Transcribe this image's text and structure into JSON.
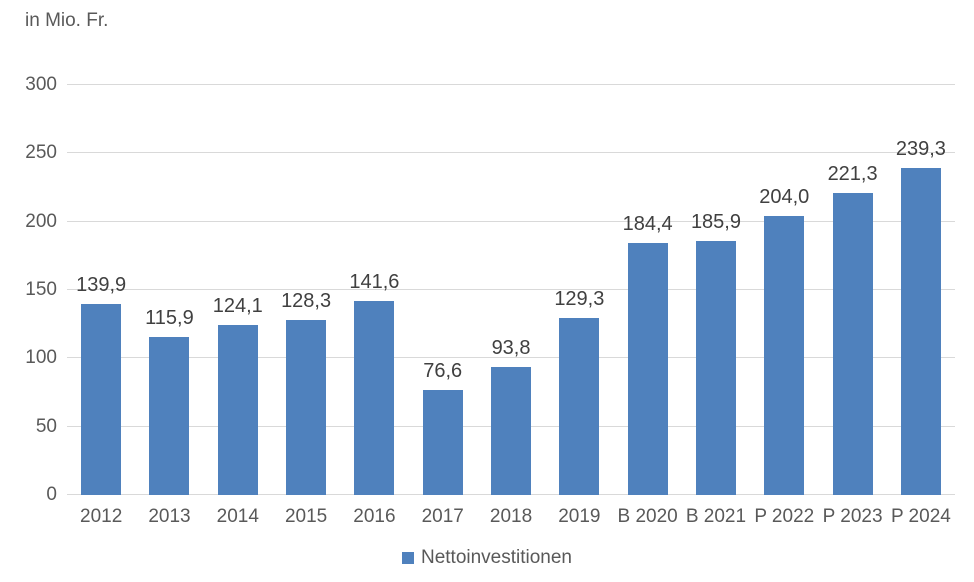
{
  "chart": {
    "unit_label": "in Mio. Fr."
  },
  "chart_data": {
    "type": "bar",
    "title": "",
    "unit_label": "in Mio. Fr.",
    "categories": [
      "2012",
      "2013",
      "2014",
      "2015",
      "2016",
      "2017",
      "2018",
      "2019",
      "B 2020",
      "B 2021",
      "P 2022",
      "P 2023",
      "P 2024"
    ],
    "series": [
      {
        "name": "Nettoinvestitionen",
        "values": [
          139.9,
          115.9,
          124.1,
          128.3,
          141.6,
          76.6,
          93.8,
          129.3,
          184.4,
          185.9,
          204.0,
          221.3,
          239.3
        ]
      }
    ],
    "data_labels": [
      "139,9",
      "115,9",
      "124,1",
      "128,3",
      "141,6",
      "76,6",
      "93,8",
      "129,3",
      "184,4",
      "185,9",
      "204,0",
      "221,3",
      "239,3"
    ],
    "ylim": [
      0,
      300
    ],
    "yticks": [
      0,
      50,
      100,
      150,
      200,
      250,
      300
    ],
    "grid": true,
    "legend_position": "bottom",
    "decimal_separator": ",",
    "colors": {
      "bar": "#4f81bd",
      "gridline": "#d9d9d9",
      "axis_text": "#595959",
      "data_label_text": "#404040"
    }
  }
}
